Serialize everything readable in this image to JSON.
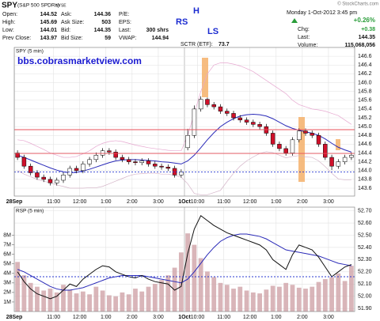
{
  "header": {
    "symbol": "SPY",
    "name": "(S&P 500 SPDRs)",
    "exchange": "NYSE",
    "credit": "© StockCharts.com",
    "columns": [
      [
        {
          "label": "Open:",
          "value": 144.52
        },
        {
          "label": "High:",
          "value": 145.69
        },
        {
          "label": "Low:",
          "value": 144.01
        },
        {
          "label": "Prev Close:",
          "value": 143.97
        }
      ],
      [
        {
          "label": "Ask:",
          "value": 144.36
        },
        {
          "label": "Ask Size:",
          "value": 503
        },
        {
          "label": "Bid:",
          "value": 144.35
        },
        {
          "label": "Bid Size:",
          "value": 59
        }
      ],
      [
        {
          "label": "P/E:"
        },
        {
          "label": "EPS:"
        },
        {
          "label": "Last:",
          "value": "300 shrs"
        },
        {
          "label": "VWAP:",
          "value": 144.94
        }
      ]
    ],
    "sctr": {
      "label": "SCTR (ETF):",
      "value": 73.7
    },
    "date": "Monday 1-Oct-2012  3:45 pm",
    "pct_change": "+0.26%",
    "right_rows": [
      {
        "label": "Chg:",
        "value": "+0.38"
      },
      {
        "label": "Last:",
        "value": 144.35
      },
      {
        "label": "Volume:",
        "value": "115,068,056"
      }
    ]
  },
  "chart_data": [
    {
      "type": "candlestick",
      "title": "SPY (5 min)",
      "annotations": [
        "RS",
        "H",
        "LS",
        "bbs.cobrasmarketview.com"
      ],
      "categories": [
        "28Sep",
        null,
        null,
        null,
        null,
        null,
        "11:00",
        null,
        null,
        null,
        "12:00",
        null,
        null,
        null,
        "1:00",
        null,
        null,
        null,
        "2:00",
        null,
        null,
        null,
        "3:00",
        null,
        null,
        null,
        "1Oct",
        null,
        "10:00",
        null,
        null,
        null,
        "11:00",
        null,
        null,
        null,
        "12:00",
        null,
        null,
        null,
        "1:00",
        null,
        null,
        null,
        "2:00",
        null,
        null,
        null,
        "3:00",
        null,
        null,
        null
      ],
      "open": [
        144.4,
        144.3,
        144.1,
        143.95,
        143.85,
        143.8,
        143.72,
        143.78,
        143.9,
        144.05,
        144.0,
        144.15,
        144.25,
        144.35,
        144.45,
        144.42,
        144.3,
        144.25,
        144.2,
        144.18,
        144.22,
        144.15,
        144.1,
        144.08,
        144.05,
        143.9,
        144.52,
        144.8,
        145.4,
        145.62,
        145.5,
        145.45,
        145.35,
        145.3,
        145.2,
        145.15,
        145.1,
        145.05,
        145.0,
        144.85,
        144.6,
        144.5,
        144.4,
        144.7,
        144.9,
        144.85,
        144.8,
        144.6,
        144.3,
        144.1,
        144.2,
        144.3
      ],
      "high": [
        144.46,
        144.36,
        144.16,
        144.01,
        143.91,
        143.86,
        143.84,
        143.96,
        144.11,
        144.11,
        144.21,
        144.31,
        144.41,
        144.51,
        144.51,
        144.48,
        144.36,
        144.31,
        144.26,
        144.28,
        144.28,
        144.21,
        144.16,
        144.14,
        144.11,
        144.03,
        144.95,
        145.48,
        145.69,
        145.66,
        145.56,
        145.51,
        145.41,
        145.36,
        145.26,
        145.21,
        145.16,
        145.11,
        145.06,
        144.91,
        144.66,
        144.56,
        144.76,
        144.96,
        144.96,
        144.91,
        144.86,
        144.66,
        144.36,
        144.26,
        144.36,
        144.41
      ],
      "low": [
        144.24,
        144.04,
        143.89,
        143.79,
        143.74,
        143.66,
        143.66,
        143.72,
        143.84,
        143.94,
        143.94,
        144.09,
        144.19,
        144.29,
        144.36,
        144.24,
        144.19,
        144.14,
        144.12,
        144.12,
        144.09,
        144.04,
        144.02,
        143.99,
        143.84,
        143.84,
        144.46,
        144.74,
        145.34,
        145.44,
        145.39,
        145.29,
        145.24,
        145.14,
        145.09,
        145.04,
        144.99,
        144.94,
        144.79,
        144.54,
        144.44,
        144.34,
        144.34,
        144.64,
        144.79,
        144.74,
        144.54,
        144.24,
        144.01,
        144.04,
        144.14,
        144.24
      ],
      "close": [
        144.3,
        144.1,
        143.95,
        143.85,
        143.8,
        143.72,
        143.78,
        143.9,
        144.05,
        144.0,
        144.15,
        144.25,
        144.35,
        144.45,
        144.42,
        144.3,
        144.25,
        144.2,
        144.18,
        144.22,
        144.15,
        144.1,
        144.08,
        144.05,
        143.9,
        143.97,
        144.8,
        145.4,
        145.62,
        145.5,
        145.45,
        145.35,
        145.3,
        145.2,
        145.15,
        145.1,
        145.05,
        145.0,
        144.85,
        144.6,
        144.5,
        144.4,
        144.7,
        144.9,
        144.85,
        144.8,
        144.6,
        144.3,
        144.1,
        144.2,
        144.3,
        144.35
      ],
      "up_color": "#ffffff",
      "down_color": "#d0102a",
      "wick_color": "#000000",
      "overlays": [
        {
          "color": "#2a2ab8",
          "values": [
            144.35,
            144.3,
            144.24,
            144.18,
            144.12,
            144.06,
            144.01,
            143.97,
            143.95,
            143.96,
            143.99,
            144.03,
            144.08,
            144.13,
            144.18,
            144.22,
            144.24,
            144.25,
            144.25,
            144.24,
            144.23,
            144.22,
            144.2,
            144.19,
            144.17,
            144.15,
            144.22,
            144.35,
            144.52,
            144.7,
            144.86,
            145.0,
            145.1,
            145.18,
            145.24,
            145.27,
            145.28,
            145.27,
            145.24,
            145.18,
            145.1,
            145.02,
            144.96,
            144.92,
            144.88,
            144.85,
            144.8,
            144.72,
            144.62,
            144.53,
            144.47,
            144.42
          ]
        },
        {
          "color": "#e6a8d0",
          "values": [
            144.7,
            144.68,
            144.62,
            144.55,
            144.48,
            144.4,
            144.35,
            144.3,
            144.3,
            144.32,
            144.38,
            144.45,
            144.55,
            144.62,
            144.66,
            144.68,
            144.66,
            144.62,
            144.58,
            144.55,
            144.52,
            144.5,
            144.48,
            144.46,
            144.45,
            144.45,
            144.8,
            145.3,
            145.8,
            146.2,
            146.4,
            146.45,
            146.45,
            146.42,
            146.38,
            146.32,
            146.25,
            146.15,
            146.05,
            145.95,
            145.85,
            145.75,
            145.6,
            145.5,
            145.45,
            145.4,
            145.38,
            145.35,
            145.3,
            145.25,
            145.15,
            145.05
          ]
        },
        {
          "color": "#d4b4c8",
          "values": [
            144.0,
            143.92,
            143.86,
            143.8,
            143.76,
            143.72,
            143.67,
            143.64,
            143.6,
            143.6,
            143.6,
            143.61,
            143.61,
            143.64,
            143.7,
            143.76,
            143.82,
            143.88,
            143.92,
            143.93,
            143.94,
            143.94,
            143.92,
            143.92,
            143.89,
            143.85,
            143.7,
            143.48,
            143.45,
            143.45,
            143.5,
            143.55,
            143.75,
            143.94,
            144.1,
            144.22,
            144.31,
            144.39,
            144.43,
            144.41,
            144.35,
            144.29,
            144.32,
            144.34,
            144.31,
            144.3,
            144.22,
            144.09,
            143.94,
            143.81,
            143.79,
            143.79
          ]
        }
      ],
      "reference_lines": [
        {
          "value": 144.93,
          "color": "#e8505a"
        },
        {
          "value": 144.39,
          "color": "#e8505a"
        },
        {
          "value": 143.97,
          "color": "#2a3ad0",
          "dashed": true
        }
      ],
      "ylim": [
        143.42,
        146.8
      ],
      "yticks": [
        143.6,
        143.8,
        {
          "value": 144,
          "label": "144.0"
        },
        144.2,
        144.4,
        144.6,
        144.8,
        {
          "value": 145,
          "label": "145.0"
        },
        145.2,
        145.4,
        145.6,
        145.8,
        {
          "value": 146,
          "label": "146.0"
        },
        146.2,
        146.4,
        146.6
      ],
      "grid": true
    },
    {
      "type": "line",
      "title": "RSP (5 min)",
      "categories": [
        "28Sep",
        null,
        null,
        null,
        null,
        null,
        "11:00",
        null,
        null,
        null,
        "12:00",
        null,
        null,
        null,
        "1:00",
        null,
        null,
        null,
        "2:00",
        null,
        null,
        null,
        "3:00",
        null,
        null,
        null,
        "1Oct",
        null,
        "10:00",
        null,
        null,
        null,
        "11:00",
        null,
        null,
        null,
        "12:00",
        null,
        null,
        null,
        "1:00",
        null,
        null,
        null,
        "2:00",
        null,
        null,
        null,
        "3:00",
        null,
        null,
        null
      ],
      "series": [
        {
          "type": "bar",
          "axis": "y2",
          "color": "#cfa2a8",
          "values": [
            5200000,
            3800000,
            3000000,
            2600000,
            2200000,
            2400000,
            2000000,
            2800000,
            2300000,
            1900000,
            2100000,
            1800000,
            2600000,
            2200000,
            1700000,
            1600000,
            2000000,
            1800000,
            2400000,
            2100000,
            2600000,
            2900000,
            3300000,
            3800000,
            4600000,
            6200000,
            8200000,
            7000000,
            5600000,
            4200000,
            3600000,
            3000000,
            2800000,
            2400000,
            2600000,
            2200000,
            2000000,
            1900000,
            2300000,
            2700000,
            2600000,
            3000000,
            2800000,
            2500000,
            2400000,
            2600000,
            3100000,
            3400000,
            3600000,
            4000000,
            3200000,
            4800000
          ]
        },
        {
          "color": "#2a2ab8",
          "values": [
            52.22,
            52.2,
            52.17,
            52.14,
            52.11,
            52.08,
            52.06,
            52.05,
            52.05,
            52.06,
            52.07,
            52.09,
            52.11,
            52.13,
            52.15,
            52.16,
            52.17,
            52.17,
            52.17,
            52.17,
            52.16,
            52.15,
            52.14,
            52.13,
            52.12,
            52.11,
            52.14,
            52.2,
            52.27,
            52.34,
            52.4,
            52.45,
            52.48,
            52.5,
            52.51,
            52.51,
            52.5,
            52.49,
            52.47,
            52.44,
            52.41,
            52.38,
            52.37,
            52.36,
            52.35,
            52.34,
            52.33,
            52.31,
            52.29,
            52.27,
            52.26,
            52.25
          ]
        },
        {
          "color": "#111111",
          "values": [
            52.2,
            52.12,
            52.06,
            52.02,
            52.0,
            51.98,
            52.0,
            52.05,
            52.1,
            52.08,
            52.14,
            52.18,
            52.22,
            52.25,
            52.24,
            52.2,
            52.18,
            52.16,
            52.15,
            52.17,
            52.14,
            52.12,
            52.11,
            52.1,
            52.05,
            52.08,
            52.35,
            52.55,
            52.66,
            52.62,
            52.58,
            52.55,
            52.52,
            52.5,
            52.48,
            52.46,
            52.44,
            52.42,
            52.38,
            52.3,
            52.26,
            52.22,
            52.34,
            52.42,
            52.4,
            52.38,
            52.32,
            52.24,
            52.16,
            52.2,
            52.24,
            52.26
          ]
        }
      ],
      "reference_lines": [
        {
          "value": 52.16,
          "color": "#2a3ad0",
          "dashed": true
        }
      ],
      "ylim": [
        51.875,
        52.73
      ],
      "yticks": [
        {
          "value": 51.9,
          "label": "51.90"
        },
        {
          "value": 52,
          "label": "52.00"
        },
        {
          "value": 52.1,
          "label": "52.10"
        },
        {
          "value": 52.2,
          "label": "52.20"
        },
        {
          "value": 52.3,
          "label": "52.30"
        },
        {
          "value": 52.4,
          "label": "52.40"
        },
        {
          "value": 52.5,
          "label": "52.50"
        },
        {
          "value": 52.6,
          "label": "52.60"
        },
        {
          "value": 52.7,
          "label": "52.70"
        }
      ],
      "y2lim": [
        0,
        10950000
      ],
      "y2ticks": [
        {
          "value": 1000000,
          "label": "1M"
        },
        {
          "value": 2000000,
          "label": "2M"
        },
        {
          "value": 3000000,
          "label": "3M"
        },
        {
          "value": 4000000,
          "label": "4M"
        },
        {
          "value": 5000000,
          "label": "5M"
        },
        {
          "value": 6000000,
          "label": "6M"
        },
        {
          "value": 7000000,
          "label": "7M"
        },
        {
          "value": 8000000,
          "label": "8M"
        }
      ],
      "grid": true
    }
  ]
}
